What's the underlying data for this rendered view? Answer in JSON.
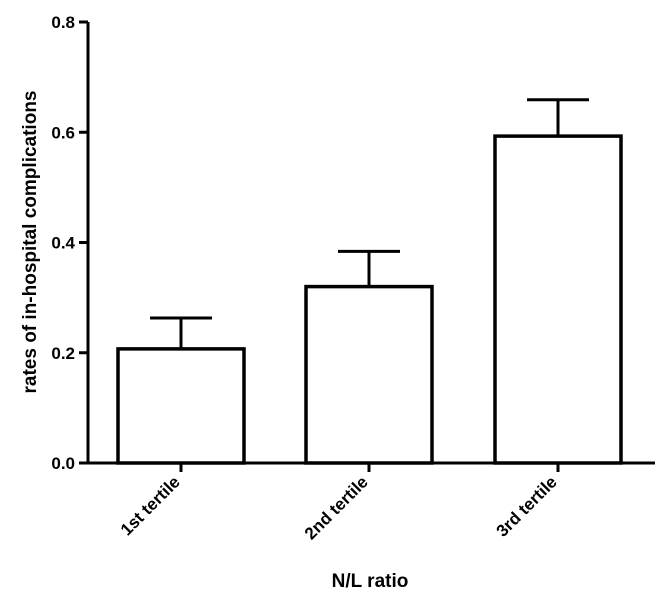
{
  "chart_data": {
    "type": "bar",
    "categories": [
      "1st tertile",
      "2nd tertile",
      "3rd tertile"
    ],
    "values": [
      0.207,
      0.32,
      0.593
    ],
    "error_upper": [
      0.263,
      0.384,
      0.659
    ],
    "xlabel": "N/L ratio",
    "ylabel": "rates of in-hospital complications",
    "ylim": [
      0,
      0.8
    ],
    "yticks": [
      0.0,
      0.2,
      0.4,
      0.6,
      0.8
    ],
    "ytick_labels": [
      "0.0",
      "0.2",
      "0.4",
      "0.6",
      "0.8"
    ],
    "grid": false,
    "colors": {
      "bar_fill": "#ffffff",
      "stroke": "#000000"
    }
  }
}
